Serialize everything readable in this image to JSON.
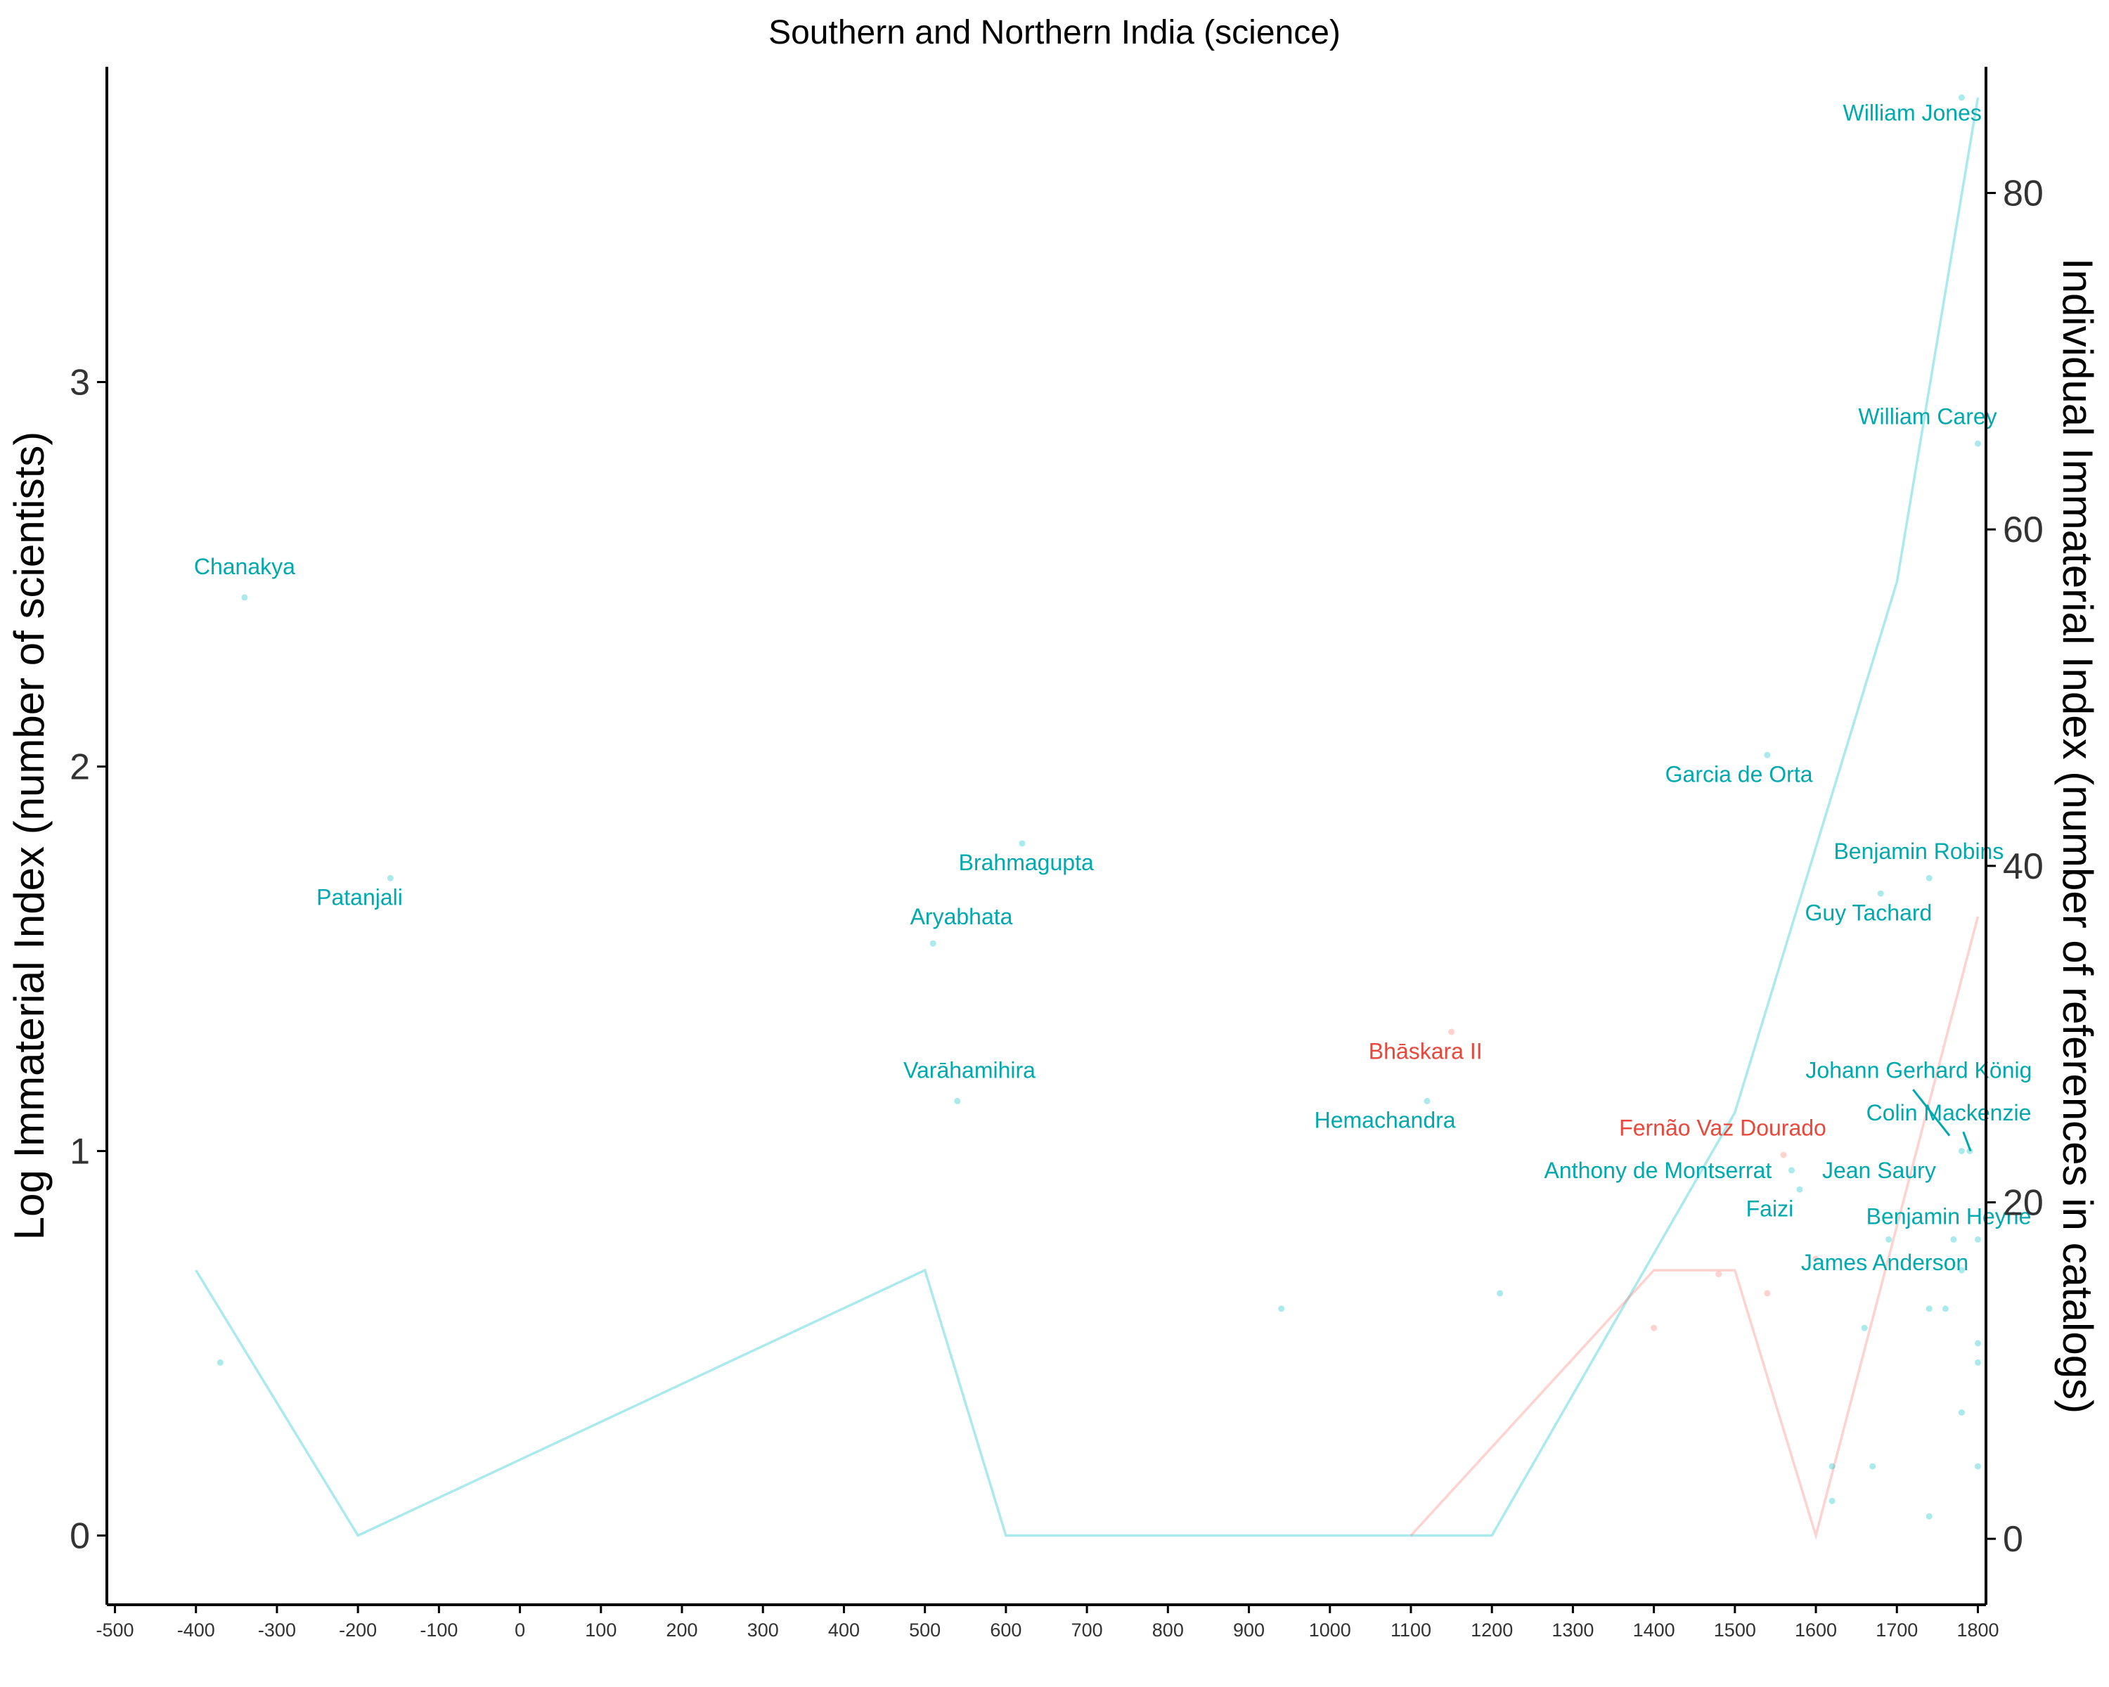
{
  "chart_data": {
    "type": "scatter",
    "title": "Southern and Northern India (science)",
    "ylabel": "Log Immaterial Index (number of scientists)",
    "ylabel_right": "Individual Immaterial Index (number of references in catalogs)",
    "xlim": [
      -510,
      1810
    ],
    "ylim": [
      -0.18,
      3.82
    ],
    "ylim_right": [
      -3.92,
      87.5
    ],
    "x_ticks": [
      -500,
      -400,
      -300,
      -200,
      -100,
      0,
      100,
      200,
      300,
      400,
      500,
      600,
      700,
      800,
      900,
      1000,
      1100,
      1200,
      1300,
      1400,
      1500,
      1600,
      1700,
      1800
    ],
    "y_ticks": [
      0,
      1,
      2,
      3
    ],
    "y_ticks_right": [
      0,
      20,
      40,
      60,
      80
    ],
    "grid": false,
    "legend": "none",
    "colors": {
      "north": "#00BFC4",
      "south": "#F8766D",
      "north_label": "#00A9AD",
      "south_label": "#E8473C",
      "axis": "#000000"
    },
    "series": [
      {
        "group": "north",
        "lines": [
          {
            "x": [
              -400,
              -200,
              500,
              600,
              1200,
              1500,
              1700,
              1800
            ],
            "y": [
              0.69,
              0,
              0.69,
              0,
              0,
              1.1,
              2.48,
              3.74
            ]
          }
        ],
        "points": [
          {
            "x": -370,
            "y": 0.45,
            "label": ""
          },
          {
            "x": -340,
            "y": 2.44,
            "label": "Chanakya"
          },
          {
            "x": -160,
            "y": 1.71,
            "label": "Patanjali"
          },
          {
            "x": 510,
            "y": 1.54,
            "label": "Aryabhata"
          },
          {
            "x": 540,
            "y": 1.13,
            "label": "Varāhamihira"
          },
          {
            "x": 620,
            "y": 1.8,
            "label": "Brahmagupta"
          },
          {
            "x": 940,
            "y": 0.59,
            "label": ""
          },
          {
            "x": 1120,
            "y": 1.13,
            "label": "Hemachandra"
          },
          {
            "x": 1210,
            "y": 0.63,
            "label": ""
          },
          {
            "x": 1540,
            "y": 2.03,
            "label": "Garcia de Orta"
          },
          {
            "x": 1570,
            "y": 0.95,
            "label": "Anthony de Montserrat"
          },
          {
            "x": 1580,
            "y": 0.9,
            "label": "Faizi"
          },
          {
            "x": 1620,
            "y": 0.18,
            "label": ""
          },
          {
            "x": 1620,
            "y": 0.09,
            "label": ""
          },
          {
            "x": 1660,
            "y": 0.54,
            "label": ""
          },
          {
            "x": 1670,
            "y": 0.18,
            "label": ""
          },
          {
            "x": 1680,
            "y": 1.67,
            "label": "Guy Tachard"
          },
          {
            "x": 1690,
            "y": 0.77,
            "label": "James Anderson"
          },
          {
            "x": 1740,
            "y": 1.71,
            "label": "Benjamin Robins"
          },
          {
            "x": 1740,
            "y": 0.59,
            "label": ""
          },
          {
            "x": 1740,
            "y": 0.05,
            "label": ""
          },
          {
            "x": 1760,
            "y": 0.59,
            "label": ""
          },
          {
            "x": 1770,
            "y": 0.77,
            "label": "Jean Saury"
          },
          {
            "x": 1780,
            "y": 1.0,
            "label": "Johann Gerhard König"
          },
          {
            "x": 1780,
            "y": 3.74,
            "label": "William Jones"
          },
          {
            "x": 1780,
            "y": 0.69,
            "label": ""
          },
          {
            "x": 1780,
            "y": 0.32,
            "label": ""
          },
          {
            "x": 1790,
            "y": 1.0,
            "label": "Colin Mackenzie"
          },
          {
            "x": 1800,
            "y": 2.84,
            "label": "William Carey"
          },
          {
            "x": 1800,
            "y": 0.77,
            "label": "Benjamin Heyne"
          },
          {
            "x": 1800,
            "y": 0.5,
            "label": ""
          },
          {
            "x": 1800,
            "y": 0.45,
            "label": ""
          },
          {
            "x": 1800,
            "y": 0.18,
            "label": ""
          }
        ]
      },
      {
        "group": "south",
        "lines": [
          {
            "x": [
              1100,
              1400,
              1500,
              1600,
              1800
            ],
            "y": [
              0,
              0.69,
              0.69,
              0,
              1.61
            ]
          }
        ],
        "points": [
          {
            "x": 1150,
            "y": 1.31,
            "label": "Bhāskara II"
          },
          {
            "x": 1400,
            "y": 0.54,
            "label": ""
          },
          {
            "x": 1480,
            "y": 0.68,
            "label": ""
          },
          {
            "x": 1540,
            "y": 0.63,
            "label": ""
          },
          {
            "x": 1560,
            "y": 0.99,
            "label": "Fernão Vaz Dourado"
          },
          {
            "x": 1600,
            "y": 0.72,
            "label": ""
          }
        ]
      }
    ],
    "labels": [
      {
        "text": "Chanakya",
        "x": -340,
        "y": 2.5,
        "group": "north"
      },
      {
        "text": "Patanjali",
        "x": -198,
        "y": 1.64,
        "group": "north"
      },
      {
        "text": "Aryabhata",
        "x": 545,
        "y": 1.59,
        "group": "north"
      },
      {
        "text": "Varāhamihira",
        "x": 555,
        "y": 1.19,
        "group": "north"
      },
      {
        "text": "Brahmagupta",
        "x": 625,
        "y": 1.73,
        "group": "north"
      },
      {
        "text": "Hemachandra",
        "x": 1068,
        "y": 1.06,
        "group": "north"
      },
      {
        "text": "Bhāskara II",
        "x": 1118,
        "y": 1.24,
        "group": "south"
      },
      {
        "text": "Garcia de Orta",
        "x": 1505,
        "y": 1.96,
        "group": "north"
      },
      {
        "text": "Fernão Vaz Dourado",
        "x": 1485,
        "y": 1.04,
        "group": "south"
      },
      {
        "text": "Anthony de Montserrat",
        "x": 1405,
        "y": 0.93,
        "group": "north"
      },
      {
        "text": "Faizi",
        "x": 1543,
        "y": 0.83,
        "group": "north"
      },
      {
        "text": "Guy Tachard",
        "x": 1665,
        "y": 1.6,
        "group": "north"
      },
      {
        "text": "Benjamin Robins",
        "x": 1727,
        "y": 1.76,
        "group": "north"
      },
      {
        "text": "Johann Gerhard König",
        "x": 1727,
        "y": 1.19,
        "group": "north"
      },
      {
        "text": "Colin Mackenzie",
        "x": 1764,
        "y": 1.08,
        "group": "north"
      },
      {
        "text": "Jean Saury",
        "x": 1678,
        "y": 0.93,
        "group": "north"
      },
      {
        "text": "Benjamin Heyne",
        "x": 1764,
        "y": 0.81,
        "group": "north"
      },
      {
        "text": "James Anderson",
        "x": 1685,
        "y": 0.69,
        "group": "north"
      },
      {
        "text": "William Jones",
        "x": 1719,
        "y": 3.68,
        "group": "north"
      },
      {
        "text": "William Carey",
        "x": 1738,
        "y": 2.89,
        "group": "north"
      }
    ],
    "connectors": [
      {
        "x1": 1720,
        "y1": 1.16,
        "x2": 1765,
        "y2": 1.04,
        "group": "north"
      },
      {
        "x1": 1782,
        "y1": 1.05,
        "x2": 1791,
        "y2": 1.0,
        "group": "north"
      }
    ]
  }
}
